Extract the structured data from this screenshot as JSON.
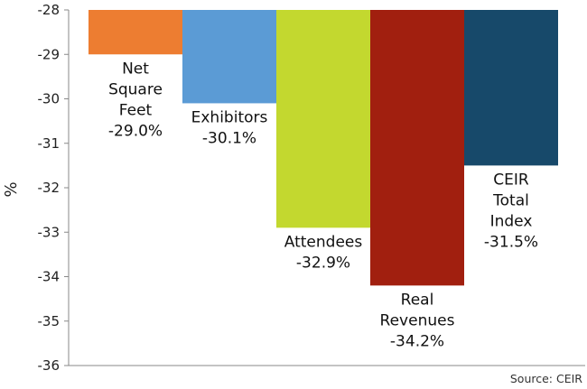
{
  "chart_data": {
    "type": "bar",
    "categories": [
      [
        "Net",
        "Square",
        "Feet"
      ],
      [
        "Exhibitors"
      ],
      [
        "Attendees"
      ],
      [
        "Real",
        "Revenues"
      ],
      [
        "CEIR",
        "Total",
        "Index"
      ]
    ],
    "values": [
      -29.0,
      -30.1,
      -32.9,
      -34.2,
      -31.5
    ],
    "value_labels": [
      "-29.0%",
      "-30.1%",
      "-32.9%",
      "-34.2%",
      "-31.5%"
    ],
    "colors": [
      "#ED7D31",
      "#5B9BD5",
      "#C3D82F",
      "#A11F0F",
      "#17496A"
    ],
    "ylabel": "%",
    "ylim": [
      -36,
      -28
    ],
    "yticks": [
      -28,
      -29,
      -30,
      -31,
      -32,
      -33,
      -34,
      -35,
      -36
    ],
    "grid": false,
    "legend": "none"
  },
  "source": "Source: CEIR"
}
